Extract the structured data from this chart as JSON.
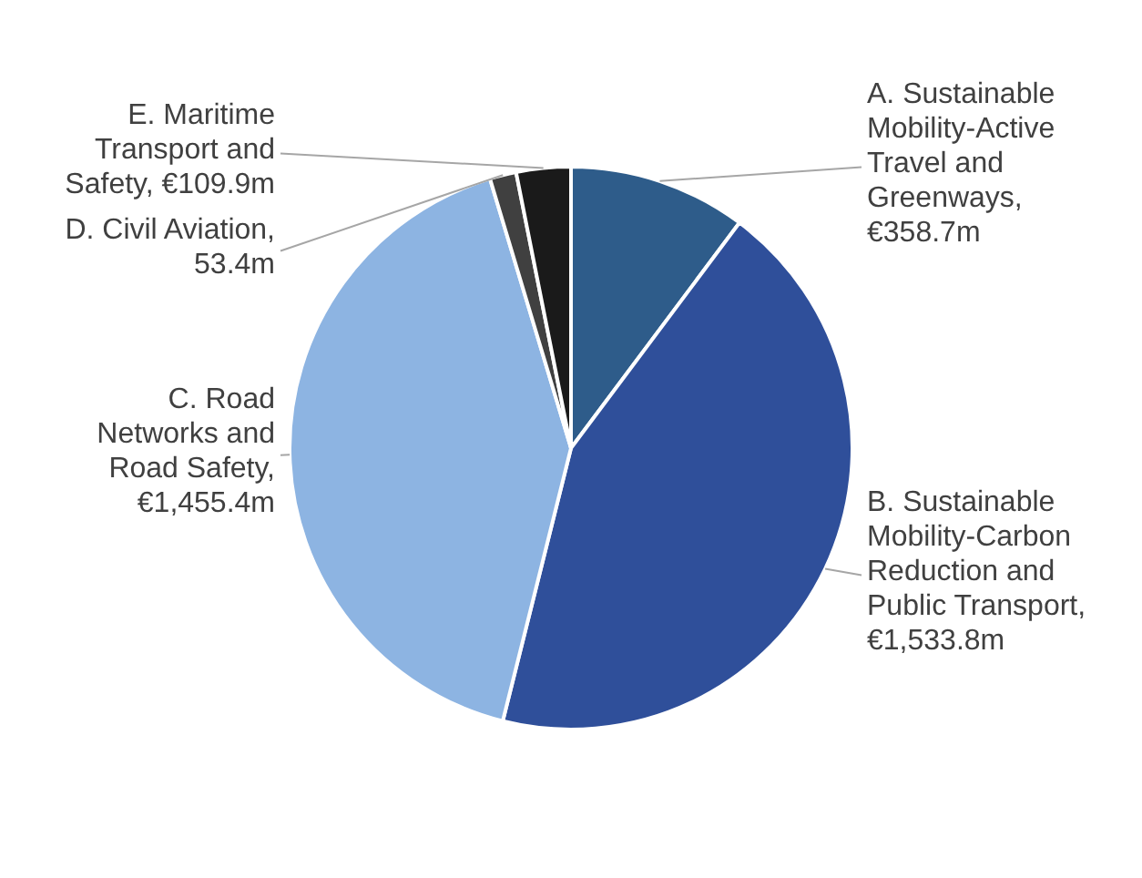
{
  "chart_data": {
    "type": "pie",
    "categories": [
      "A. Sustainable Mobility-Active Travel and Greenways, €358.7m",
      "B. Sustainable Mobility-Carbon Reduction and Public Transport, €1,533.8m",
      "C. Road Networks and Road Safety, €1,455.4m",
      "D. Civil Aviation, 53.4m",
      "E. Maritime Transport and Safety, €109.9m"
    ],
    "values": [
      358.7,
      1533.8,
      1455.4,
      53.4,
      109.9
    ],
    "colors": [
      "#2e5c8a",
      "#2f4f9a",
      "#8db4e2",
      "#404040",
      "#1a1a1a"
    ],
    "legend": false
  }
}
